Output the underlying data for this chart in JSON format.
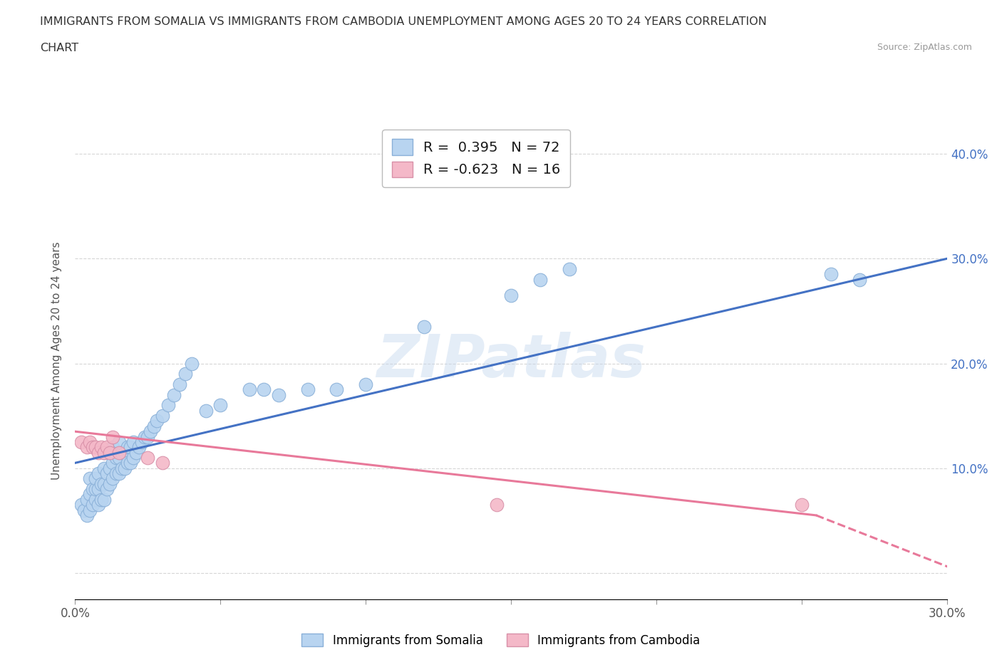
{
  "title_line1": "IMMIGRANTS FROM SOMALIA VS IMMIGRANTS FROM CAMBODIA UNEMPLOYMENT AMONG AGES 20 TO 24 YEARS CORRELATION",
  "title_line2": "CHART",
  "source": "Source: ZipAtlas.com",
  "ylabel": "Unemployment Among Ages 20 to 24 years",
  "xlim": [
    0.0,
    0.3
  ],
  "ylim": [
    -0.025,
    0.43
  ],
  "xticks": [
    0.0,
    0.05,
    0.1,
    0.15,
    0.2,
    0.25,
    0.3
  ],
  "yticks": [
    0.0,
    0.1,
    0.2,
    0.3,
    0.4
  ],
  "ytick_labels_right": [
    "",
    "10.0%",
    "20.0%",
    "30.0%",
    "40.0%"
  ],
  "xtick_labels": [
    "0.0%",
    "",
    "",
    "",
    "",
    "",
    "30.0%"
  ],
  "somalia_color": "#b8d4f0",
  "somalia_edge_color": "#8ab0d8",
  "cambodia_color": "#f4b8c8",
  "cambodia_edge_color": "#d890a8",
  "somalia_line_color": "#4472c4",
  "cambodia_line_color": "#e8799a",
  "watermark": "ZIPatlas",
  "R_somalia": 0.395,
  "N_somalia": 72,
  "R_cambodia": -0.623,
  "N_cambodia": 16,
  "somalia_x": [
    0.002,
    0.003,
    0.004,
    0.004,
    0.005,
    0.005,
    0.005,
    0.006,
    0.006,
    0.007,
    0.007,
    0.007,
    0.008,
    0.008,
    0.008,
    0.009,
    0.009,
    0.01,
    0.01,
    0.01,
    0.01,
    0.011,
    0.011,
    0.012,
    0.012,
    0.012,
    0.013,
    0.013,
    0.013,
    0.014,
    0.014,
    0.015,
    0.015,
    0.015,
    0.016,
    0.016,
    0.017,
    0.017,
    0.018,
    0.018,
    0.019,
    0.019,
    0.02,
    0.02,
    0.021,
    0.022,
    0.023,
    0.024,
    0.025,
    0.026,
    0.027,
    0.028,
    0.03,
    0.032,
    0.034,
    0.036,
    0.038,
    0.04,
    0.045,
    0.05,
    0.06,
    0.065,
    0.07,
    0.08,
    0.09,
    0.1,
    0.12,
    0.15,
    0.16,
    0.17,
    0.26,
    0.27
  ],
  "somalia_y": [
    0.065,
    0.06,
    0.055,
    0.07,
    0.06,
    0.075,
    0.09,
    0.065,
    0.08,
    0.07,
    0.08,
    0.09,
    0.065,
    0.08,
    0.095,
    0.07,
    0.085,
    0.07,
    0.085,
    0.1,
    0.115,
    0.08,
    0.095,
    0.085,
    0.1,
    0.115,
    0.09,
    0.105,
    0.12,
    0.095,
    0.11,
    0.095,
    0.11,
    0.125,
    0.1,
    0.115,
    0.1,
    0.115,
    0.105,
    0.12,
    0.105,
    0.12,
    0.11,
    0.125,
    0.115,
    0.12,
    0.125,
    0.13,
    0.13,
    0.135,
    0.14,
    0.145,
    0.15,
    0.16,
    0.17,
    0.18,
    0.19,
    0.2,
    0.155,
    0.16,
    0.175,
    0.175,
    0.17,
    0.175,
    0.175,
    0.18,
    0.235,
    0.265,
    0.28,
    0.29,
    0.285,
    0.28
  ],
  "cambodia_x": [
    0.002,
    0.004,
    0.005,
    0.006,
    0.007,
    0.008,
    0.009,
    0.01,
    0.011,
    0.012,
    0.013,
    0.015,
    0.025,
    0.03,
    0.145,
    0.25
  ],
  "cambodia_y": [
    0.125,
    0.12,
    0.125,
    0.12,
    0.12,
    0.115,
    0.12,
    0.115,
    0.12,
    0.115,
    0.13,
    0.115,
    0.11,
    0.105,
    0.065,
    0.065
  ],
  "somalia_trend": [
    0.0,
    0.3,
    0.105,
    0.3
  ],
  "cambodia_trend_solid": [
    0.0,
    0.255,
    0.135,
    0.055
  ],
  "cambodia_trend_dashed": [
    0.255,
    0.315,
    0.055,
    -0.01
  ]
}
